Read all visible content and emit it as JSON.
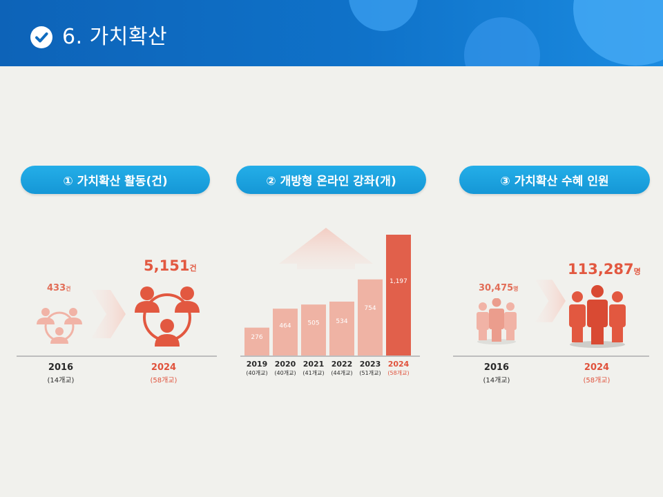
{
  "header": {
    "title": "6. 가치확산",
    "icon": "check-circle-icon",
    "colors": {
      "header_blue": "#0f72c9",
      "accent_red": "#e25840",
      "pill_blue": "#1a9fdd"
    }
  },
  "sections": {
    "s1": {
      "label": "① 가치확산 활동(건)",
      "left": {
        "value": "433",
        "unit": "건",
        "year": "2016",
        "schools": "(14개교)",
        "icon": "people-network-icon"
      },
      "right": {
        "value": "5,151",
        "unit": "건",
        "year": "2024",
        "schools": "(58개교)",
        "icon": "people-network-icon"
      },
      "arrow_icon": "chevron-right-icon"
    },
    "s2": {
      "label": "② 개방형 온라인 강좌(개)",
      "growth_icon": "up-arrow-icon"
    },
    "s3": {
      "label": "③ 가치확산 수혜 인원",
      "left": {
        "value": "30,475",
        "unit": "명",
        "year": "2016",
        "schools": "(14개교)",
        "icon": "people-group-icon"
      },
      "right": {
        "value": "113,287",
        "unit": "명",
        "year": "2024",
        "schools": "(58개교)",
        "icon": "people-group-icon"
      },
      "arrow_icon": "chevron-right-icon"
    }
  },
  "chart_data": {
    "type": "bar",
    "title": "② 개방형 온라인 강좌(개)",
    "categories": [
      "2019",
      "2020",
      "2021",
      "2022",
      "2023",
      "2024"
    ],
    "category_sublabels": [
      "(40개교)",
      "(40개교)",
      "(41개교)",
      "(44개교)",
      "(51개교)",
      "(58개교)"
    ],
    "values": [
      276,
      464,
      505,
      534,
      754,
      1197
    ],
    "value_labels": [
      "276",
      "464",
      "505",
      "534",
      "754",
      "1,197"
    ],
    "colors": [
      "#efb3a4",
      "#efb3a4",
      "#efb3a4",
      "#efb3a4",
      "#efb3a4",
      "#e1604b"
    ],
    "ylim": [
      0,
      1197
    ],
    "grid": false,
    "xlabel": "",
    "ylabel": ""
  }
}
